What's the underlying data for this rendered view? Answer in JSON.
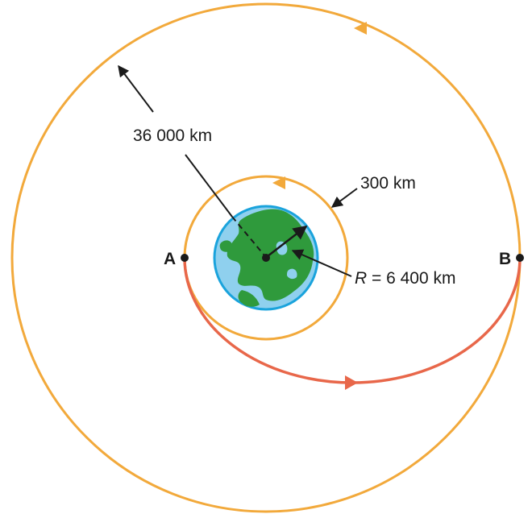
{
  "colors": {
    "orbit": "#f2a93b",
    "transfer": "#e8674a",
    "ocean": "#8fd0ee",
    "ocean_edge": "#1aa3dc",
    "land": "#2f9a3c",
    "ink": "#1a1a1a"
  },
  "labels": {
    "geo_altitude": "36 000 km",
    "leo_altitude": "300 km",
    "radius_symbol": "R",
    "radius_value": " = 6 400 km",
    "point_a": "A",
    "point_b": "B"
  }
}
